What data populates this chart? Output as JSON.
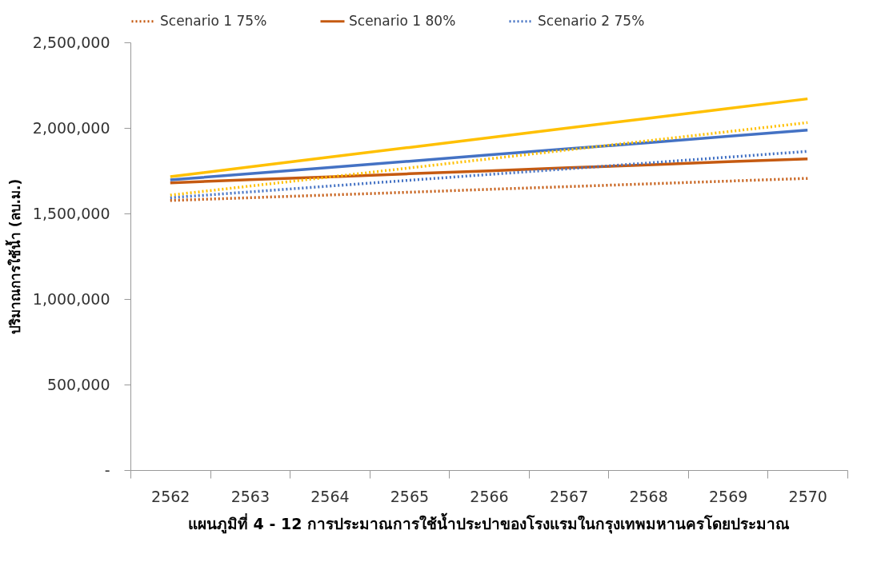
{
  "chart_data": {
    "type": "line",
    "title": "แผนภูมิที่ 4 - 12 การประมาณการใช้น้ำประปาของโรงแรมในกรุงเทพมหานครโดยประมาณ",
    "ylabel": "ปริมาณการใช้น้ำ (ลบ.ม.)",
    "categories": [
      "2562",
      "2563",
      "2564",
      "2565",
      "2566",
      "2567",
      "2568",
      "2569",
      "2570"
    ],
    "ylim": [
      0,
      2500000
    ],
    "yticks": [
      {
        "value": 0,
        "label": "-"
      },
      {
        "value": 500000,
        "label": "500,000"
      },
      {
        "value": 1000000,
        "label": "1,000,000"
      },
      {
        "value": 1500000,
        "label": "1,500,000"
      },
      {
        "value": 2000000,
        "label": "2,000,000"
      },
      {
        "value": 2500000,
        "label": "2,500,000"
      }
    ],
    "grid": false,
    "legend": "top",
    "marker": "none",
    "series": [
      {
        "name": "Scenario 1 75%",
        "color": "#c55a11",
        "line_style": "dotted",
        "values": [
          1576000,
          1592000,
          1608000,
          1624000,
          1641000,
          1657000,
          1673000,
          1689000,
          1705000
        ]
      },
      {
        "name": "Scenario 1 80%",
        "color": "#c55a11",
        "line_style": "solid",
        "values": [
          1679000,
          1697000,
          1714000,
          1732000,
          1749000,
          1767000,
          1784000,
          1802000,
          1819000
        ]
      },
      {
        "name": "Scenario 2 75%",
        "color": "#4472c4",
        "line_style": "dotted",
        "values": [
          1592000,
          1626000,
          1660000,
          1694000,
          1728000,
          1761000,
          1795000,
          1829000,
          1863000
        ]
      },
      {
        "color": "#4472c4",
        "line_style": "solid",
        "values": [
          1696000,
          1732000,
          1769000,
          1805000,
          1842000,
          1878000,
          1914000,
          1951000,
          1987000
        ]
      },
      {
        "color": "#ffc000",
        "line_style": "dotted",
        "values": [
          1607000,
          1660000,
          1713000,
          1766000,
          1819000,
          1872000,
          1925000,
          1978000,
          2031000
        ]
      },
      {
        "color": "#ffc000",
        "line_style": "solid",
        "values": [
          1715000,
          1772000,
          1829000,
          1886000,
          1943000,
          2000000,
          2056000,
          2113000,
          2170000
        ]
      }
    ]
  }
}
